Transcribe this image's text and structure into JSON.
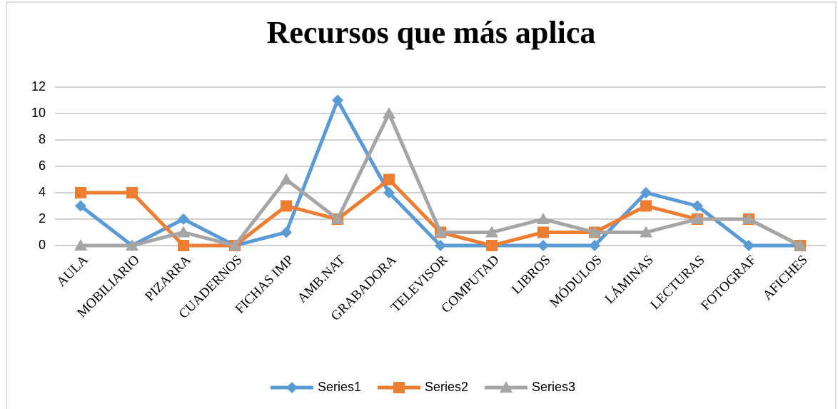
{
  "chart_data": {
    "type": "line",
    "title": "Recursos que más aplica",
    "categories": [
      "AULA",
      "MOBILIARIO",
      "PIZARRA",
      "CUADERNOS",
      "FICHAS IMP",
      "AMB.NAT",
      "GRABADORA",
      "TELEVISOR",
      "COMPUTAD",
      "LIBROS",
      "MÓDULOS",
      "LÁMINAS",
      "LECTURAS",
      "FOTOGRAF",
      "AFICHES"
    ],
    "series": [
      {
        "name": "Series1",
        "color": "#5b9bd5",
        "values": [
          3,
          0,
          2,
          0,
          1,
          11,
          4,
          0,
          0,
          0,
          0,
          4,
          3,
          0,
          0
        ]
      },
      {
        "name": "Series2",
        "color": "#ed7d31",
        "values": [
          4,
          4,
          0,
          0,
          3,
          2,
          5,
          1,
          0,
          1,
          1,
          3,
          2,
          2,
          0
        ]
      },
      {
        "name": "Series3",
        "color": "#a5a5a5",
        "values": [
          0,
          0,
          1,
          0,
          5,
          2,
          10,
          1,
          1,
          2,
          1,
          1,
          2,
          2,
          0
        ]
      }
    ],
    "ylim": [
      0,
      12
    ],
    "yticks": [
      0,
      2,
      4,
      6,
      8,
      10,
      12
    ],
    "grid": true,
    "legend": "bottom"
  }
}
